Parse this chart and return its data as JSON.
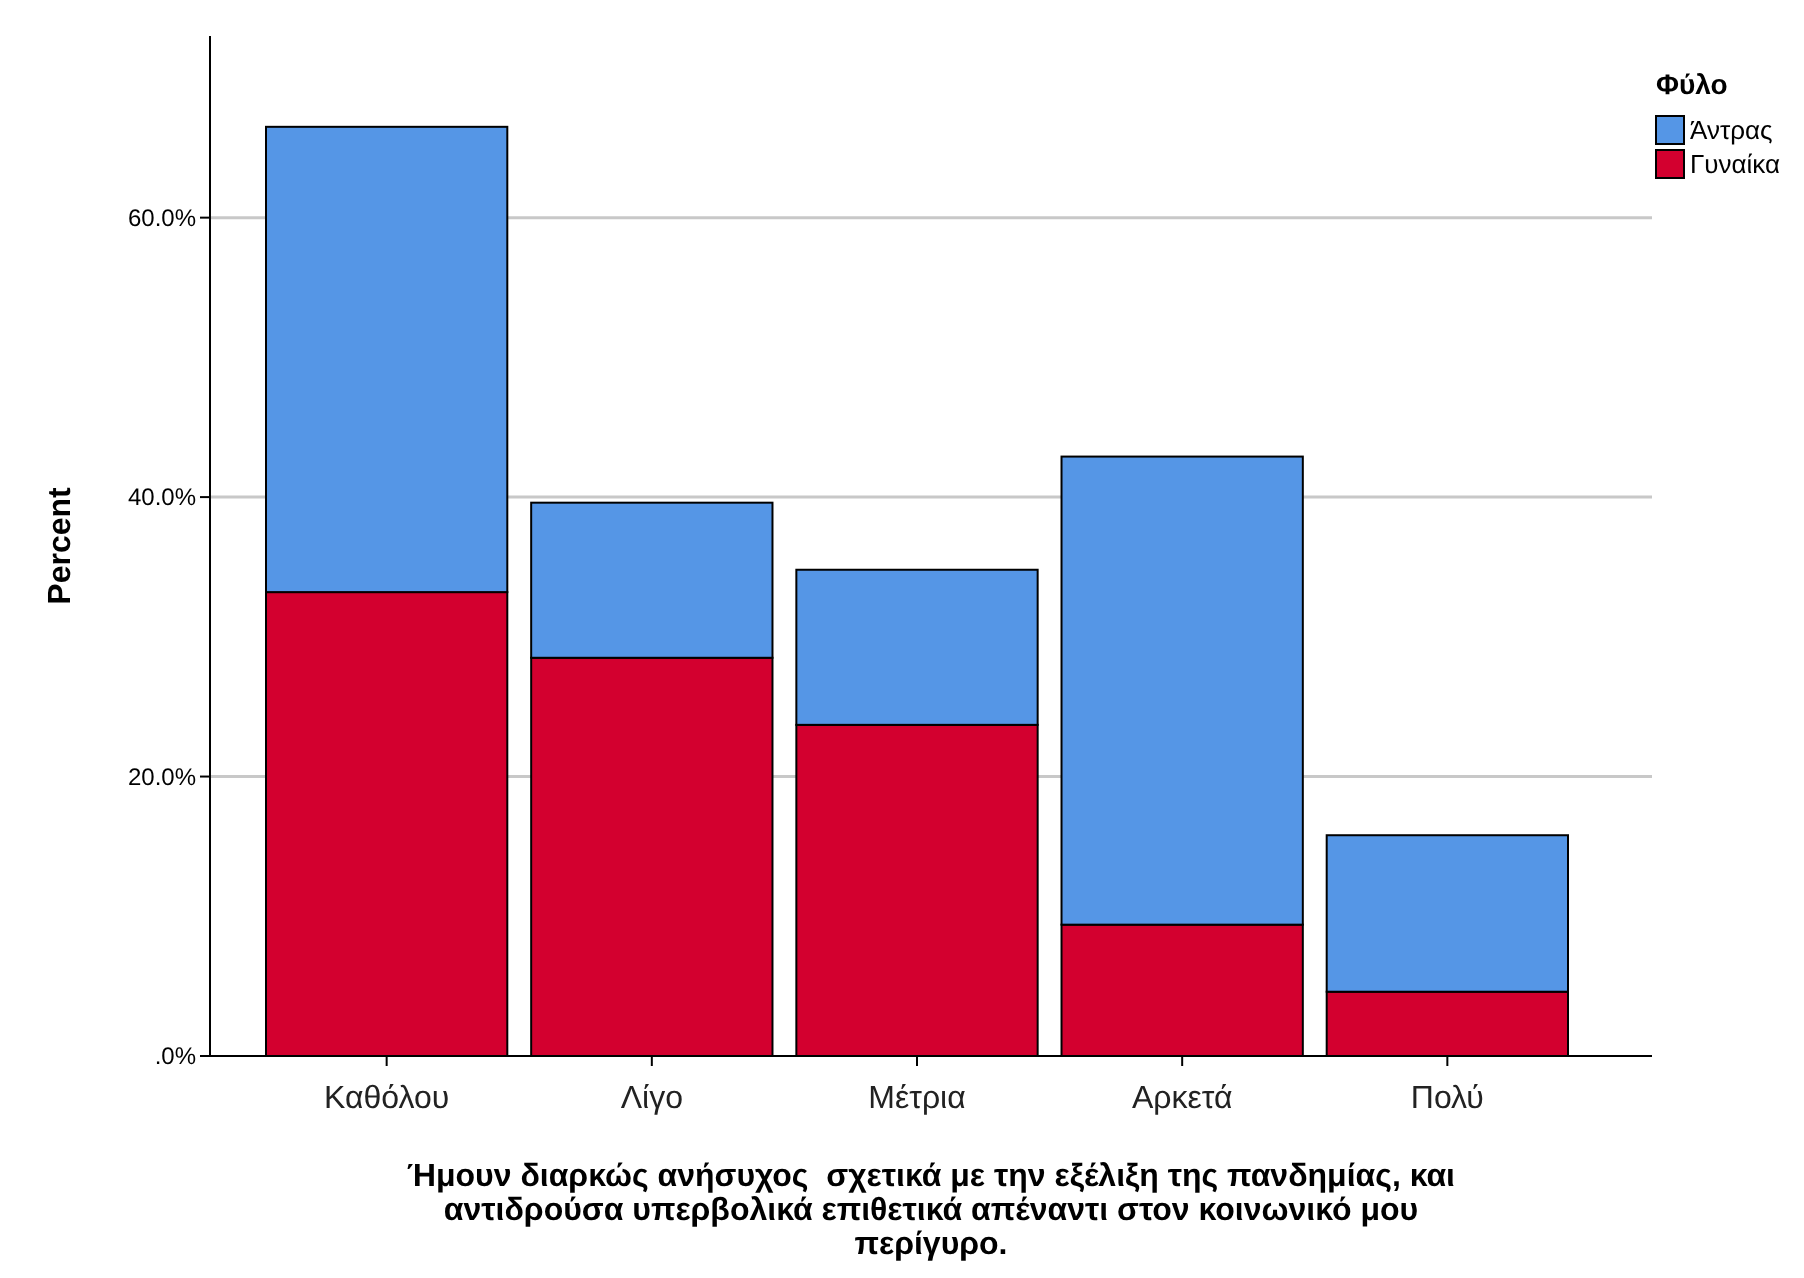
{
  "chart_data": {
    "type": "bar",
    "stacked": true,
    "xlabel": "Ήμουν διαρκώς ανήσυχος  σχετικά με την εξέλιξη της πανδημίας, και αντιδρούσα υπερβολικά επιθετικά απέναντι στον κοινωνικό μου περίγυρο.",
    "ylabel": "Percent",
    "legend_title": "Φύλο",
    "legend": "top right",
    "grid": "y",
    "categories": [
      "Καθόλου",
      "Λίγο",
      "Μέτρια",
      "Αρκετά",
      "Πολύ"
    ],
    "series": [
      {
        "name": "Γυναίκα",
        "color": "#d3002f",
        "values": [
          33.2,
          28.5,
          23.7,
          9.4,
          4.6
        ]
      },
      {
        "name": "Άντρας",
        "color": "#5596e6",
        "values": [
          33.3,
          11.1,
          11.1,
          33.5,
          11.2
        ]
      }
    ],
    "ylim": [
      0,
      73
    ],
    "yticks": [
      {
        "value": 0,
        "label": ".0%"
      },
      {
        "value": 20,
        "label": "20.0%"
      },
      {
        "value": 40,
        "label": "40.0%"
      },
      {
        "value": 60,
        "label": "60.0%"
      }
    ]
  }
}
